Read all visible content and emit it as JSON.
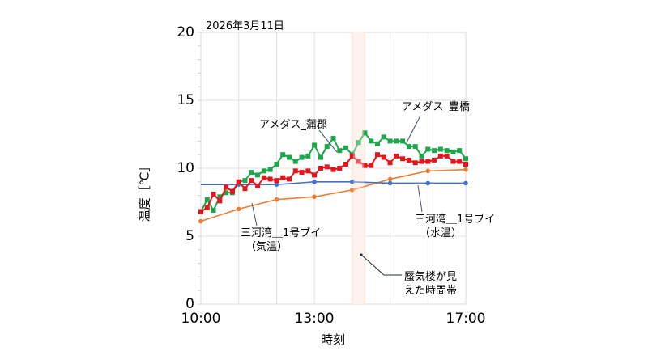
{
  "chart_data": {
    "type": "line",
    "title": "2026年3月11日",
    "xlabel": "時刻",
    "ylabel": "温度［℃］",
    "ylim": [
      0,
      20
    ],
    "yticks": [
      "0",
      "5",
      "10",
      "15",
      "20"
    ],
    "xlim": [
      "10:00",
      "17:00"
    ],
    "xticks": [
      "10:00",
      "13:00",
      "17:00"
    ],
    "grid": {
      "vertical_hourly": true,
      "horizontal_major": [
        5,
        10,
        15
      ]
    },
    "shaded_band": {
      "start": "14:00",
      "end": "14:20",
      "label": "蜃気楼が見えた時間帯",
      "color": "#fbe9df"
    },
    "x": [
      "10:00",
      "10:10",
      "10:20",
      "10:30",
      "10:40",
      "10:50",
      "11:00",
      "11:10",
      "11:20",
      "11:30",
      "11:40",
      "11:50",
      "12:00",
      "12:10",
      "12:20",
      "12:30",
      "12:40",
      "12:50",
      "13:00",
      "13:10",
      "13:20",
      "13:30",
      "13:40",
      "13:50",
      "14:00",
      "14:10",
      "14:20",
      "14:30",
      "14:40",
      "14:50",
      "15:00",
      "15:10",
      "15:20",
      "15:30",
      "15:40",
      "15:50",
      "16:00",
      "16:10",
      "16:20",
      "16:30",
      "16:40",
      "16:50",
      "17:00"
    ],
    "series": [
      {
        "name": "アメダス_蒲郡",
        "color": "#1aa84a",
        "marker": "square",
        "interval_min": 10,
        "values": [
          6.8,
          7.7,
          6.9,
          7.9,
          8.2,
          8.2,
          9.0,
          9.1,
          9.7,
          9.5,
          9.8,
          9.9,
          10.3,
          11.0,
          10.8,
          10.5,
          10.8,
          10.9,
          11.7,
          10.8,
          11.6,
          12.2,
          11.3,
          11.5,
          11.0,
          11.9,
          12.6,
          12.0,
          11.8,
          12.3,
          12.0,
          12.0,
          12.0,
          11.6,
          11.6,
          10.9,
          11.4,
          11.3,
          11.4,
          11.3,
          11.2,
          11.3,
          10.7
        ]
      },
      {
        "name": "アメダス_豊橋",
        "color": "#e8141c",
        "marker": "square",
        "interval_min": 10,
        "values": [
          6.8,
          7.1,
          8.1,
          7.6,
          8.6,
          8.3,
          9.0,
          8.5,
          9.1,
          8.7,
          9.3,
          9.2,
          9.1,
          9.3,
          9.2,
          9.8,
          9.7,
          9.8,
          9.5,
          10.0,
          10.1,
          9.9,
          10.0,
          10.3,
          10.9,
          10.5,
          10.2,
          10.2,
          11.0,
          10.8,
          10.4,
          10.9,
          10.7,
          10.6,
          10.4,
          10.5,
          10.5,
          10.6,
          10.9,
          10.9,
          10.5,
          10.5,
          10.3
        ]
      },
      {
        "name": "三河湾＿1号ブイ（水温）",
        "color": "#4472c4",
        "marker": "circle",
        "interval_min": 60,
        "x": [
          "10:00",
          "11:00",
          "12:00",
          "13:00",
          "14:00",
          "15:00",
          "16:00",
          "17:00"
        ],
        "values": [
          8.8,
          8.8,
          8.8,
          9.0,
          9.0,
          8.9,
          8.9,
          8.9
        ]
      },
      {
        "name": "三河湾＿1号ブイ（気温）",
        "color": "#ed7d31",
        "marker": "circle",
        "interval_min": 60,
        "x": [
          "10:00",
          "11:00",
          "12:00",
          "13:00",
          "14:00",
          "15:00",
          "16:00",
          "17:00"
        ],
        "values": [
          6.1,
          7.0,
          7.7,
          7.9,
          8.4,
          9.2,
          9.8,
          9.9
        ]
      }
    ],
    "annotations": [
      {
        "text": "アメダス_蒲郡"
      },
      {
        "text": "アメダス_豊橋"
      },
      {
        "text": "三河湾＿1号ブイ\n（気温）"
      },
      {
        "text": "三河湾＿1号ブイ\n（水温）"
      },
      {
        "text": "蜃気楼が見\nえた時間帯"
      }
    ]
  },
  "labels": {
    "date": "2026年3月11日",
    "ylabel": "温度［℃］",
    "xlabel": "時刻",
    "ytick_0": "0",
    "ytick_5": "5",
    "ytick_10": "10",
    "ytick_15": "15",
    "ytick_20": "20",
    "xtick_1000": "10:00",
    "xtick_1300": "13:00",
    "xtick_1700": "17:00",
    "ann_gamagori": "アメダス_蒲郡",
    "ann_toyohashi": "アメダス_豊橋",
    "ann_air_l1": "三河湾＿1号ブイ",
    "ann_air_l2": "（気温）",
    "ann_water_l1": "三河湾＿1号ブイ",
    "ann_water_l2": "（水温）",
    "ann_mirage_l1": "蜃気楼が見",
    "ann_mirage_l2": "えた時間帯"
  }
}
